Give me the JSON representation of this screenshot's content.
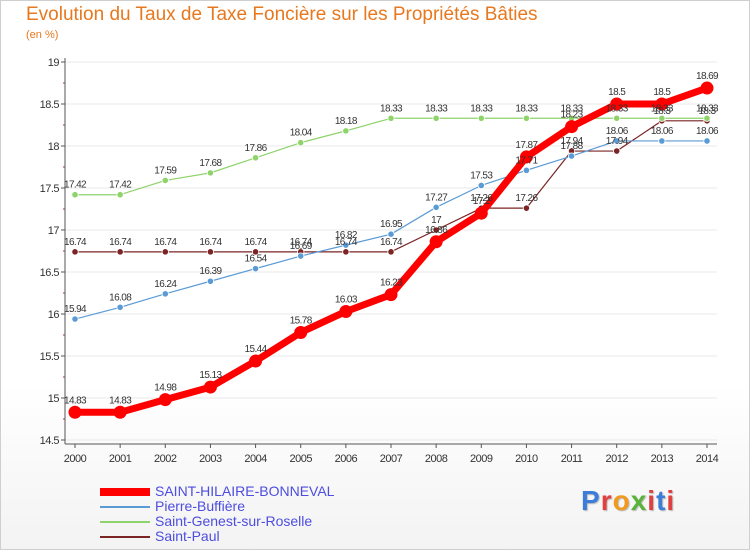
{
  "title": "Evolution du Taux de Taxe Foncière sur les Propriétés Bâties",
  "subtitle": "(en %)",
  "logo": {
    "text": "Proxiti",
    "colors": [
      "#3b7dd8",
      "#e04040",
      "#f09a20",
      "#59b33a",
      "#e04040",
      "#3b7dd8",
      "#e04040"
    ]
  },
  "chart_data": {
    "type": "line",
    "title": "Evolution du Taux de Taxe Foncière sur les Propriétés Bâties",
    "ylabel": "(en %)",
    "xlabel": "",
    "ylim": [
      14.5,
      19
    ],
    "yticks": [
      14.5,
      15,
      15.5,
      16,
      16.5,
      17,
      17.5,
      18,
      18.5,
      19
    ],
    "categories": [
      "2000",
      "2001",
      "2002",
      "2003",
      "2004",
      "2005",
      "2006",
      "2007",
      "2008",
      "2009",
      "2010",
      "2011",
      "2012",
      "2013",
      "2014"
    ],
    "series": [
      {
        "name": "SAINT-HILAIRE-BONNEVAL",
        "color": "#ff0000",
        "width": "thick",
        "values": [
          14.83,
          14.83,
          14.98,
          15.13,
          15.44,
          15.78,
          16.03,
          16.23,
          16.86,
          17.2,
          17.87,
          18.23,
          18.5,
          18.5,
          18.69
        ],
        "labels": [
          "14.83",
          "14.83",
          "14.98",
          "15.13",
          "15.44",
          "15.78",
          "16.03",
          "16.23",
          "16.86",
          "17.2",
          "17.87",
          "18.23",
          "18.5",
          "18.5",
          "18.69"
        ]
      },
      {
        "name": "Pierre-Buffière",
        "color": "#5b9bd5",
        "width": "thin",
        "values": [
          15.94,
          16.08,
          16.24,
          16.39,
          16.54,
          16.69,
          16.82,
          16.95,
          17.27,
          17.53,
          17.71,
          17.88,
          18.06,
          18.06,
          18.06
        ],
        "labels": [
          "15.94",
          "16.08",
          "16.24",
          "16.39",
          "16.54",
          "16.69",
          "16.82",
          "16.95",
          "17.27",
          "17.53",
          "17.71",
          "17.88",
          "18.06",
          "18.06",
          "18.06"
        ]
      },
      {
        "name": "Saint-Genest-sur-Roselle",
        "color": "#8fd36b",
        "width": "thin",
        "values": [
          17.42,
          17.42,
          17.59,
          17.68,
          17.86,
          18.04,
          18.18,
          18.33,
          18.33,
          18.33,
          18.33,
          18.33,
          18.33,
          18.33,
          18.33
        ],
        "labels": [
          "17.42",
          "17.42",
          "17.59",
          "17.68",
          "17.86",
          "18.04",
          "18.18",
          "18.33",
          "18.33",
          "18.33",
          "18.33",
          "18.33",
          "18.33",
          "18.33",
          "18.33"
        ]
      },
      {
        "name": "Saint-Paul",
        "color": "#7a2424",
        "width": "thin",
        "values": [
          16.74,
          16.74,
          16.74,
          16.74,
          16.74,
          16.74,
          16.74,
          16.74,
          17,
          17.26,
          17.26,
          17.94,
          17.94,
          18.3,
          18.3
        ],
        "labels": [
          "16.74",
          "16.74",
          "16.74",
          "16.74",
          "16.74",
          "16.74",
          "16.74",
          "16.74",
          "17",
          "17.26",
          "17.26",
          "17.94",
          "17.94",
          "18.3",
          "18.3"
        ]
      }
    ]
  }
}
